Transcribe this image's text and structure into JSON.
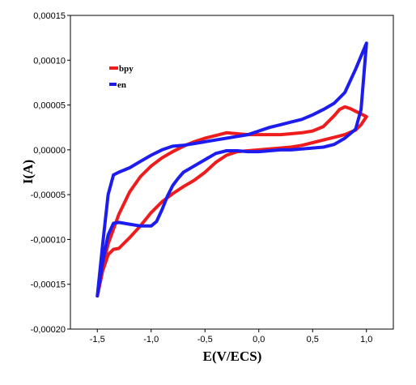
{
  "chart_data": {
    "type": "line",
    "title": "",
    "xlabel": "E(V/ECS)",
    "ylabel": "I(A)",
    "xlim": [
      -1.75,
      1.25
    ],
    "ylim": [
      -0.0002,
      0.00015
    ],
    "xticks": [
      -1.5,
      -1.0,
      -0.5,
      0.0,
      0.5,
      1.0
    ],
    "xtick_labels": [
      "-1,5",
      "-1,0",
      "-0,5",
      "0,0",
      "0,5",
      "1,0"
    ],
    "yticks": [
      -0.0002,
      -0.00015,
      -0.0001,
      -5e-05,
      0.0,
      5e-05,
      0.0001,
      0.00015
    ],
    "ytick_labels": [
      "-0,00020",
      "-0,00015",
      "-0,00010",
      "-0,00005",
      "0,00000",
      "0,00005",
      "0,00010",
      "0,00015"
    ],
    "grid": false,
    "legend": {
      "position": "top-left",
      "entries": [
        "bpy",
        "en"
      ]
    },
    "series": [
      {
        "name": "bpy",
        "color": "#ee1c1c",
        "x": [
          -1.5,
          -1.45,
          -1.4,
          -1.35,
          -1.3,
          -1.2,
          -1.1,
          -1.0,
          -0.9,
          -0.8,
          -0.7,
          -0.6,
          -0.5,
          -0.4,
          -0.3,
          -0.2,
          -0.1,
          0.0,
          0.1,
          0.2,
          0.3,
          0.4,
          0.5,
          0.6,
          0.7,
          0.8,
          0.9,
          0.95,
          1.0,
          0.95,
          0.9,
          0.85,
          0.8,
          0.75,
          0.7,
          0.65,
          0.6,
          0.5,
          0.4,
          0.3,
          0.2,
          0.1,
          0.0,
          -0.1,
          -0.2,
          -0.3,
          -0.4,
          -0.5,
          -0.6,
          -0.7,
          -0.8,
          -0.9,
          -1.0,
          -1.1,
          -1.2,
          -1.3,
          -1.4,
          -1.45,
          -1.5
        ],
        "y": [
          -0.000163,
          -0.000135,
          -0.000117,
          -0.000111,
          -0.00011,
          -9.8e-05,
          -8.5e-05,
          -7e-05,
          -5.8e-05,
          -4.9e-05,
          -4.1e-05,
          -3.4e-05,
          -2.5e-05,
          -1.4e-05,
          -6e-06,
          -2e-06,
          -1e-06,
          0.0,
          1e-06,
          2e-06,
          3e-06,
          5e-06,
          8e-06,
          1.1e-05,
          1.4e-05,
          1.7e-05,
          2.2e-05,
          2.8e-05,
          3.7e-05,
          4e-05,
          4.3e-05,
          4.6e-05,
          4.8e-05,
          4.5e-05,
          3.8e-05,
          3.2e-05,
          2.6e-05,
          2.1e-05,
          1.9e-05,
          1.8e-05,
          1.7e-05,
          1.7e-05,
          1.7e-05,
          1.7e-05,
          1.8e-05,
          1.9e-05,
          1.6e-05,
          1.3e-05,
          9e-06,
          4e-06,
          -2e-06,
          -9e-06,
          -1.8e-05,
          -3e-05,
          -4.7e-05,
          -7.2e-05,
          -0.000105,
          -0.00013,
          -0.000163
        ]
      },
      {
        "name": "en",
        "color": "#1c1cee",
        "x": [
          -1.5,
          -1.45,
          -1.4,
          -1.35,
          -1.3,
          -1.2,
          -1.1,
          -1.0,
          -0.95,
          -0.9,
          -0.85,
          -0.8,
          -0.75,
          -0.7,
          -0.6,
          -0.5,
          -0.4,
          -0.3,
          -0.2,
          -0.1,
          0.0,
          0.1,
          0.2,
          0.3,
          0.4,
          0.5,
          0.6,
          0.7,
          0.8,
          0.9,
          0.95,
          1.0,
          0.9,
          0.8,
          0.7,
          0.6,
          0.5,
          0.4,
          0.3,
          0.2,
          0.1,
          0.0,
          -0.1,
          -0.2,
          -0.3,
          -0.4,
          -0.5,
          -0.6,
          -0.7,
          -0.8,
          -0.9,
          -1.0,
          -1.1,
          -1.2,
          -1.3,
          -1.35,
          -1.4,
          -1.45,
          -1.5
        ],
        "y": [
          -0.000163,
          -0.000125,
          -9.5e-05,
          -8.2e-05,
          -8.1e-05,
          -8.3e-05,
          -8.5e-05,
          -8.5e-05,
          -8e-05,
          -6.7e-05,
          -5.2e-05,
          -4e-05,
          -3.2e-05,
          -2.5e-05,
          -1.8e-05,
          -1.1e-05,
          -4e-06,
          -1e-06,
          -1e-06,
          -2e-06,
          -2e-06,
          -1e-06,
          0.0,
          0.0,
          1e-06,
          2e-06,
          3e-06,
          6e-06,
          1.3e-05,
          2.3e-05,
          4.5e-05,
          0.000119,
          9e-05,
          6.4e-05,
          5.2e-05,
          4.5e-05,
          3.9e-05,
          3.4e-05,
          3.1e-05,
          2.8e-05,
          2.5e-05,
          2.1e-05,
          1.7e-05,
          1.5e-05,
          1.3e-05,
          1.1e-05,
          9e-06,
          7e-06,
          5e-06,
          4e-06,
          0.0,
          -6e-06,
          -1.3e-05,
          -2e-05,
          -2.5e-05,
          -2.8e-05,
          -5e-05,
          -0.000105,
          -0.000163
        ]
      }
    ]
  }
}
